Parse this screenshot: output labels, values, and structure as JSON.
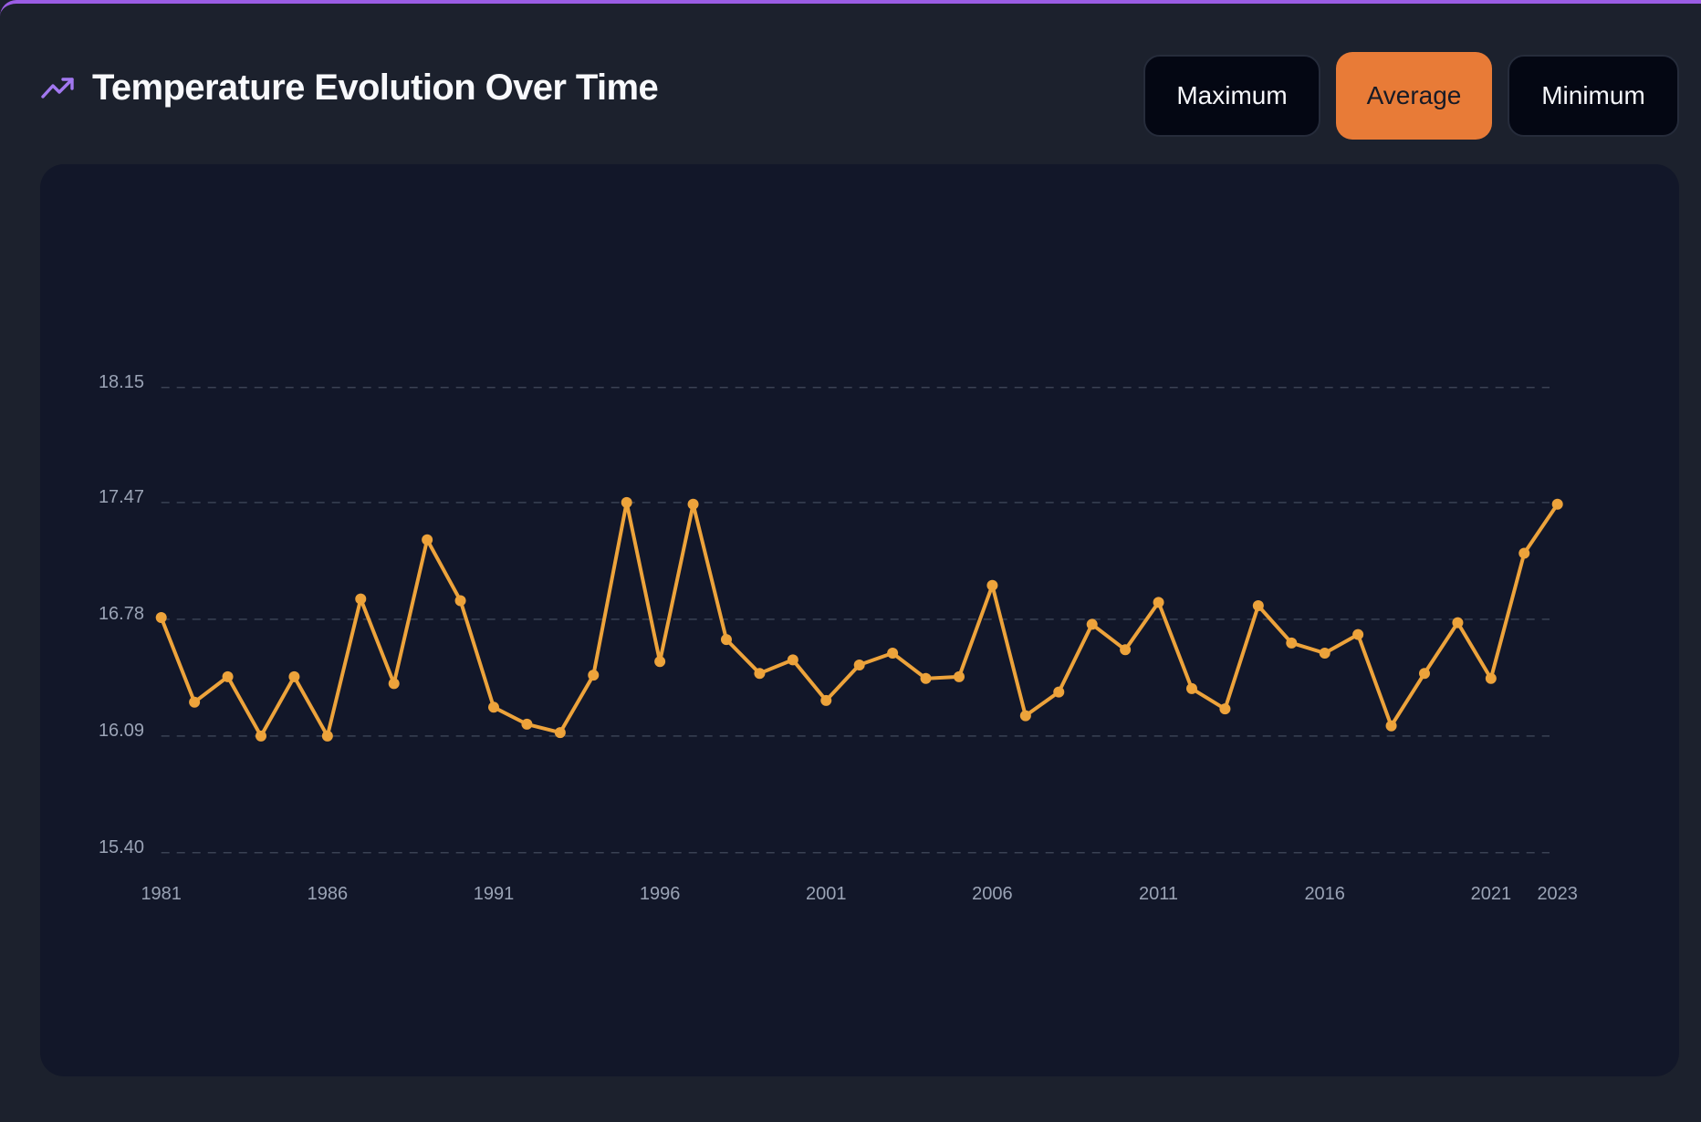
{
  "header": {
    "icon": "trending-up-icon",
    "title": "Temperature Evolution Over Time"
  },
  "toggle": {
    "options": [
      {
        "label": "Maximum",
        "active": false
      },
      {
        "label": "Average",
        "active": true
      },
      {
        "label": "Minimum",
        "active": false
      }
    ]
  },
  "colors": {
    "accent_border": "#9b5de5",
    "icon": "#a278f0",
    "active_button": "#e87b37",
    "line": "#eda33b",
    "grid": "#3a4254",
    "tick_label": "#9aa3b5"
  },
  "chart_data": {
    "type": "line",
    "title": "Temperature Evolution Over Time",
    "xlabel": "",
    "ylabel": "",
    "series": [
      {
        "name": "Average",
        "x": [
          1981,
          1982,
          1983,
          1984,
          1985,
          1986,
          1987,
          1988,
          1989,
          1990,
          1991,
          1992,
          1993,
          1994,
          1995,
          1996,
          1997,
          1998,
          1999,
          2000,
          2001,
          2002,
          2003,
          2004,
          2005,
          2006,
          2007,
          2008,
          2009,
          2010,
          2011,
          2012,
          2013,
          2014,
          2015,
          2016,
          2017,
          2018,
          2019,
          2020,
          2021,
          2022,
          2023
        ],
        "values": [
          16.79,
          16.29,
          16.44,
          16.09,
          16.44,
          16.09,
          16.9,
          16.4,
          17.25,
          16.89,
          16.26,
          16.16,
          16.11,
          16.45,
          17.47,
          16.53,
          17.46,
          16.66,
          16.46,
          16.54,
          16.3,
          16.51,
          16.58,
          16.43,
          16.44,
          16.98,
          16.21,
          16.35,
          16.75,
          16.6,
          16.88,
          16.37,
          16.25,
          16.86,
          16.64,
          16.58,
          16.69,
          16.15,
          16.46,
          16.76,
          16.43,
          17.17,
          17.46
        ]
      }
    ],
    "ylim": [
      15.4,
      18.15
    ],
    "xlim": [
      1981,
      2023
    ],
    "yticks": [
      "15.40",
      "16.09",
      "16.78",
      "17.47",
      "18.15"
    ],
    "xticks": [
      "1981",
      "1986",
      "1991",
      "1996",
      "2001",
      "2006",
      "2011",
      "2016",
      "2021",
      "2023"
    ],
    "grid": true,
    "grid_style": "dashed-horizontal",
    "legend": "none"
  }
}
